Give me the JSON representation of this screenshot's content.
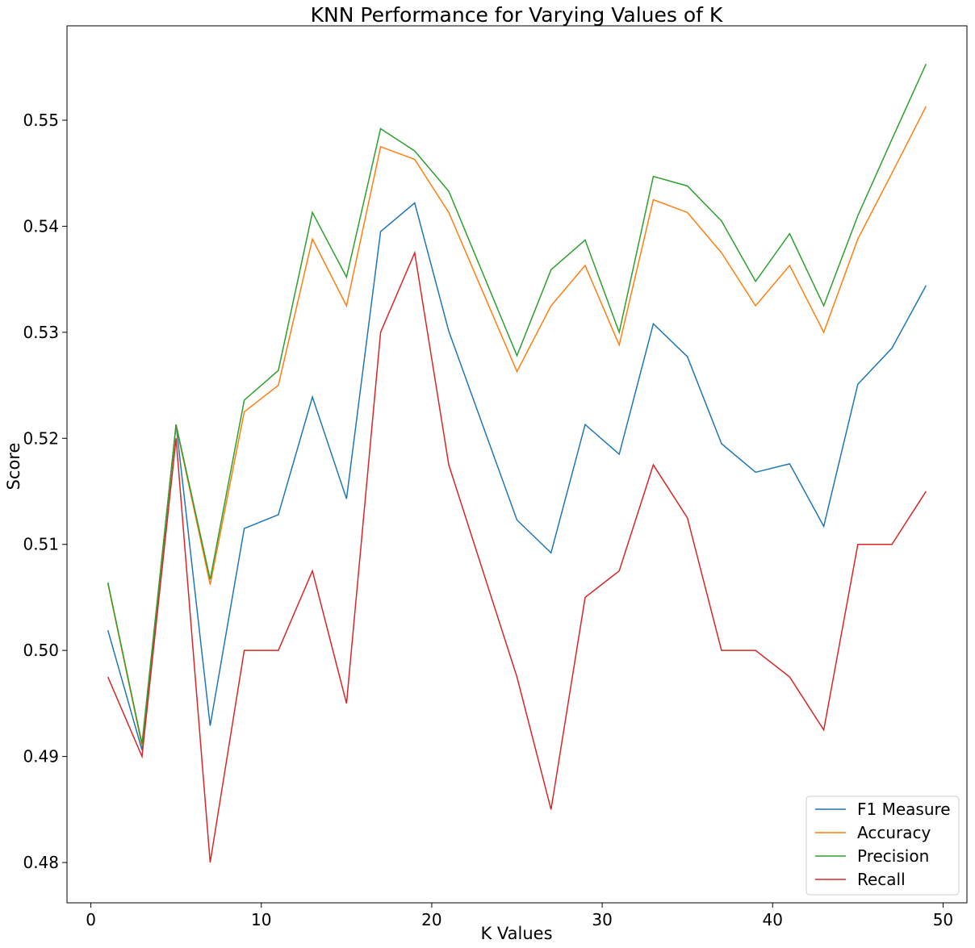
{
  "chart_data": {
    "type": "line",
    "title": "KNN Performance for Varying Values of K",
    "xlabel": "K Values",
    "ylabel": "Score",
    "xlim": [
      -1.4,
      51.4
    ],
    "ylim": [
      0.4762,
      0.5589
    ],
    "xticks": [
      0,
      10,
      20,
      30,
      40,
      50
    ],
    "xtick_labels": [
      "0",
      "10",
      "20",
      "30",
      "40",
      "50"
    ],
    "yticks": [
      0.48,
      0.49,
      0.5,
      0.51,
      0.52,
      0.53,
      0.54,
      0.55
    ],
    "ytick_labels": [
      "0.48",
      "0.49",
      "0.50",
      "0.51",
      "0.52",
      "0.53",
      "0.54",
      "0.55"
    ],
    "grid": false,
    "legend_position": "bottom-right",
    "x": [
      1,
      3,
      5,
      7,
      9,
      11,
      13,
      15,
      17,
      19,
      21,
      25,
      27,
      29,
      31,
      33,
      35,
      37,
      39,
      41,
      43,
      45,
      47,
      49
    ],
    "series": [
      {
        "name": "F1 Measure",
        "color": "#1f77b4",
        "values": [
          0.5019,
          0.4906,
          0.5213,
          0.4929,
          0.5115,
          0.5128,
          0.5239,
          0.5143,
          0.5395,
          0.5422,
          0.5301,
          0.5123,
          0.5092,
          0.5213,
          0.5185,
          0.5308,
          0.5277,
          0.5195,
          0.5168,
          0.5176,
          0.5117,
          0.5251,
          0.5285,
          0.5344
        ]
      },
      {
        "name": "Accuracy",
        "color": "#ff7f0e",
        "values": [
          0.5063,
          0.491,
          0.5212,
          0.5062,
          0.5225,
          0.525,
          0.5388,
          0.5325,
          0.5475,
          0.5463,
          0.5413,
          0.5263,
          0.5325,
          0.5363,
          0.5288,
          0.5425,
          0.5413,
          0.5375,
          0.5325,
          0.5363,
          0.53,
          0.5388,
          0.545,
          0.5513
        ]
      },
      {
        "name": "Precision",
        "color": "#2ca02c",
        "values": [
          0.5064,
          0.4912,
          0.5213,
          0.5067,
          0.5236,
          0.5264,
          0.5413,
          0.5352,
          0.5492,
          0.5471,
          0.5433,
          0.5278,
          0.5359,
          0.5387,
          0.53,
          0.5447,
          0.5438,
          0.5405,
          0.5348,
          0.5393,
          0.5325,
          0.541,
          0.5482,
          0.5553
        ]
      },
      {
        "name": "Recall",
        "color": "#d62728",
        "values": [
          0.4975,
          0.49,
          0.52,
          0.48,
          0.5,
          0.5,
          0.5075,
          0.495,
          0.53,
          0.5375,
          0.5175,
          0.4975,
          0.485,
          0.505,
          0.5075,
          0.5175,
          0.5125,
          0.5,
          0.5,
          0.4975,
          0.4925,
          0.51,
          0.51,
          0.515
        ]
      }
    ]
  }
}
